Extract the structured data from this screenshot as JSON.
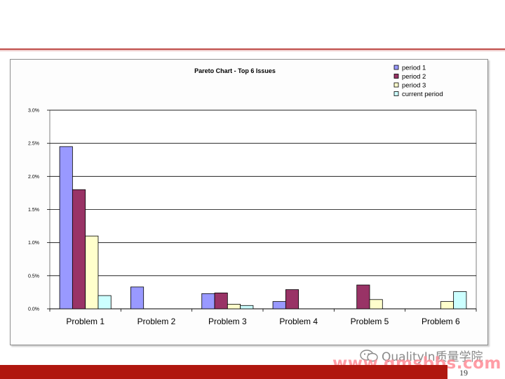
{
  "slide": {
    "page_number": "19",
    "watermark_line1": "QualityIn质量学院",
    "watermark_line2": "www.qmsbbs.com"
  },
  "chart_data": {
    "type": "bar",
    "title": "Pareto Chart - Top 6 Issues",
    "xlabel": "",
    "ylabel": "",
    "categories": [
      "Problem 1",
      "Problem 2",
      "Problem 3",
      "Problem 4",
      "Problem 5",
      "Problem 6"
    ],
    "series": [
      {
        "name": "period 1",
        "color": "#9999ff",
        "values": [
          2.45,
          0.33,
          0.23,
          0.11,
          0,
          0
        ]
      },
      {
        "name": "period 2",
        "color": "#993366",
        "values": [
          1.8,
          0,
          0.24,
          0.29,
          0.36,
          0
        ]
      },
      {
        "name": "period 3",
        "color": "#ffffcc",
        "values": [
          1.1,
          0,
          0.07,
          0,
          0.14,
          0.11
        ]
      },
      {
        "name": "current period",
        "color": "#ccffff",
        "values": [
          0.2,
          0,
          0.05,
          0,
          0,
          0.26
        ]
      }
    ],
    "ylim": [
      0,
      3.0
    ],
    "yticks": [
      "0.0%",
      "0.5%",
      "1.0%",
      "1.5%",
      "2.0%",
      "2.5%",
      "3.0%"
    ],
    "ytick_values": [
      0,
      0.5,
      1.0,
      1.5,
      2.0,
      2.5,
      3.0
    ],
    "grid": true,
    "legend_position": "top-right"
  }
}
